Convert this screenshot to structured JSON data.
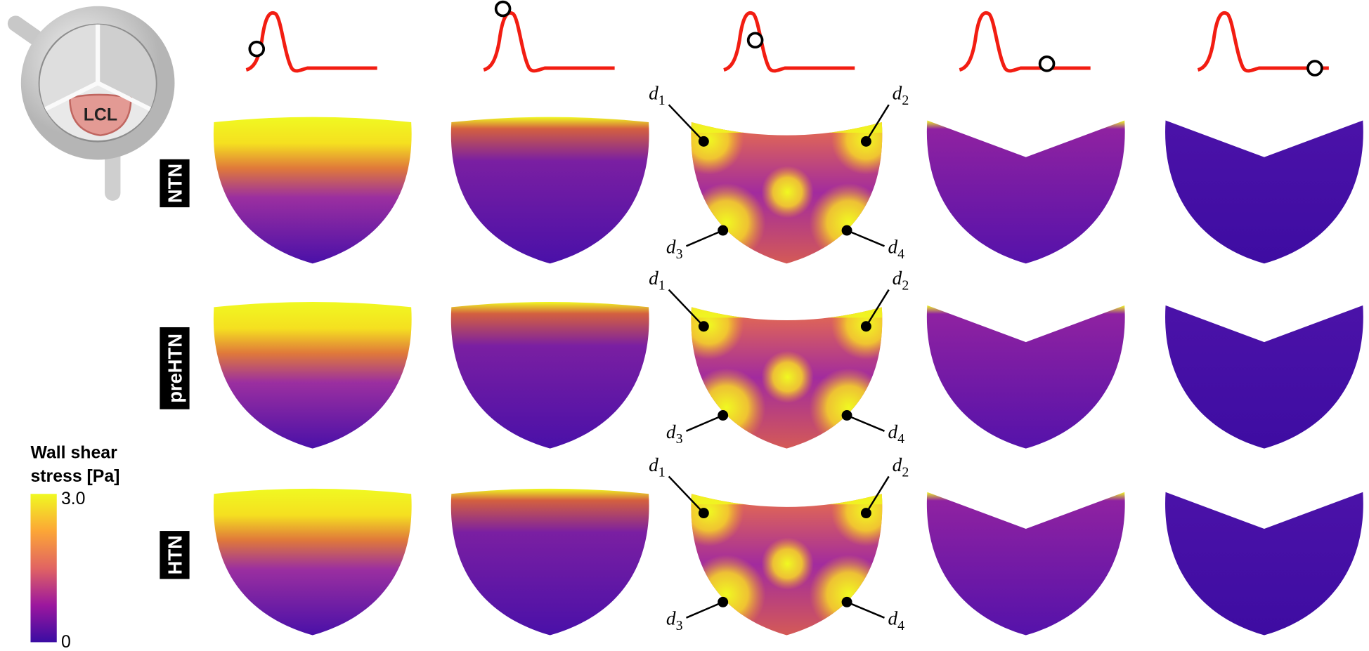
{
  "inset": {
    "label": "LCL"
  },
  "rows": [
    {
      "label": "NTN"
    },
    {
      "label": "preHTN"
    },
    {
      "label": "HTN"
    }
  ],
  "colorbar": {
    "title": [
      "Wall shear",
      "stress [Pa]"
    ],
    "top_label": "3.0",
    "bottom_label": "0"
  },
  "point_labels": [
    {
      "letter": "d",
      "index": "1"
    },
    {
      "letter": "d",
      "index": "2"
    },
    {
      "letter": "d",
      "index": "3"
    },
    {
      "letter": "d",
      "index": "4"
    }
  ]
}
